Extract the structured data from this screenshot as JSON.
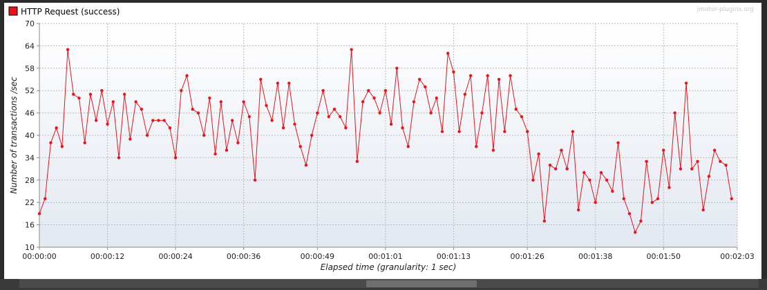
{
  "chart_data": {
    "type": "line",
    "title": "",
    "xlabel": "Elapsed time (granularity: 1 sec)",
    "ylabel": "Number of transactions /sec",
    "watermark": "jmeter-plugins.org",
    "ylim": [
      10,
      70
    ],
    "yticks": [
      10,
      16,
      22,
      28,
      34,
      40,
      46,
      52,
      58,
      64,
      70
    ],
    "xlim": [
      0,
      123
    ],
    "xticks": [
      {
        "t": 0,
        "label": "00:00:00"
      },
      {
        "t": 12,
        "label": "00:00:12"
      },
      {
        "t": 24,
        "label": "00:00:24"
      },
      {
        "t": 36,
        "label": "00:00:36"
      },
      {
        "t": 49,
        "label": "00:00:49"
      },
      {
        "t": 61,
        "label": "00:01:01"
      },
      {
        "t": 73,
        "label": "00:01:13"
      },
      {
        "t": 86,
        "label": "00:01:26"
      },
      {
        "t": 98,
        "label": "00:01:38"
      },
      {
        "t": 110,
        "label": "00:01:50"
      },
      {
        "t": 123,
        "label": "00:02:03"
      }
    ],
    "grid": true,
    "legend_position": "top-left",
    "series": [
      {
        "name": "HTTP Request (success)",
        "color": "#e8141b",
        "values": [
          19,
          23,
          38,
          42,
          37,
          63,
          51,
          50,
          38,
          51,
          44,
          52,
          43,
          49,
          34,
          51,
          39,
          49,
          47,
          40,
          44,
          44,
          44,
          42,
          34,
          52,
          56,
          47,
          46,
          40,
          50,
          35,
          49,
          36,
          44,
          38,
          49,
          45,
          28,
          55,
          48,
          44,
          54,
          42,
          54,
          43,
          37,
          32,
          40,
          46,
          52,
          45,
          47,
          45,
          42,
          63,
          33,
          49,
          52,
          50,
          46,
          52,
          43,
          58,
          42,
          37,
          49,
          55,
          53,
          46,
          50,
          41,
          62,
          57,
          41,
          51,
          56,
          37,
          46,
          56,
          36,
          55,
          41,
          56,
          47,
          45,
          41,
          28,
          35,
          17,
          32,
          31,
          36,
          31,
          41,
          20,
          30,
          28,
          22,
          30,
          28,
          25,
          38,
          23,
          19,
          14,
          17,
          33,
          22,
          23,
          36,
          26,
          46,
          31,
          54,
          31,
          33,
          20,
          29,
          36,
          33,
          32,
          23
        ]
      }
    ]
  }
}
